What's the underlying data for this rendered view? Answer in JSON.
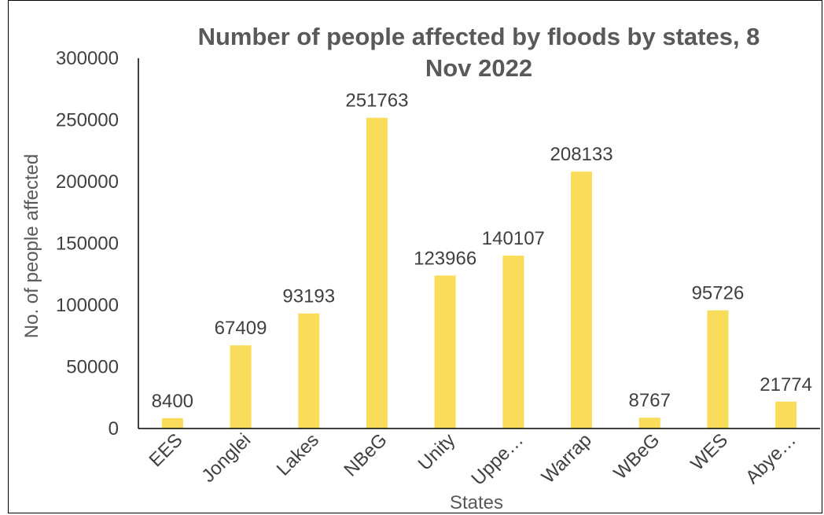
{
  "chart_data": {
    "type": "bar",
    "title_line1": "Number of people affected by floods by states, 8",
    "title_line2": "Nov 2022",
    "xlabel": "States",
    "ylabel": "No. of people affected",
    "categories": [
      "EES",
      "Jonglei",
      "Lakes",
      "NBeG",
      "Unity",
      "Uppe…",
      "Warrap",
      "WBeG",
      "WES",
      "Abye…"
    ],
    "values": [
      8400,
      67409,
      93193,
      251763,
      123966,
      140107,
      208133,
      8767,
      95726,
      21774
    ],
    "data_labels": [
      "8400",
      "67409",
      "93193",
      "251763",
      "123966",
      "140107",
      "208133",
      "8767",
      "95726",
      "21774"
    ],
    "y_ticks": [
      0,
      50000,
      100000,
      150000,
      200000,
      250000,
      300000
    ],
    "y_tick_labels": [
      "0",
      "50000",
      "100000",
      "150000",
      "200000",
      "250000",
      "300000"
    ],
    "ylim": [
      0,
      300000
    ],
    "grid": false,
    "legend": "none",
    "bar_color": "#F8DC5A",
    "axis_color": "#000000"
  }
}
